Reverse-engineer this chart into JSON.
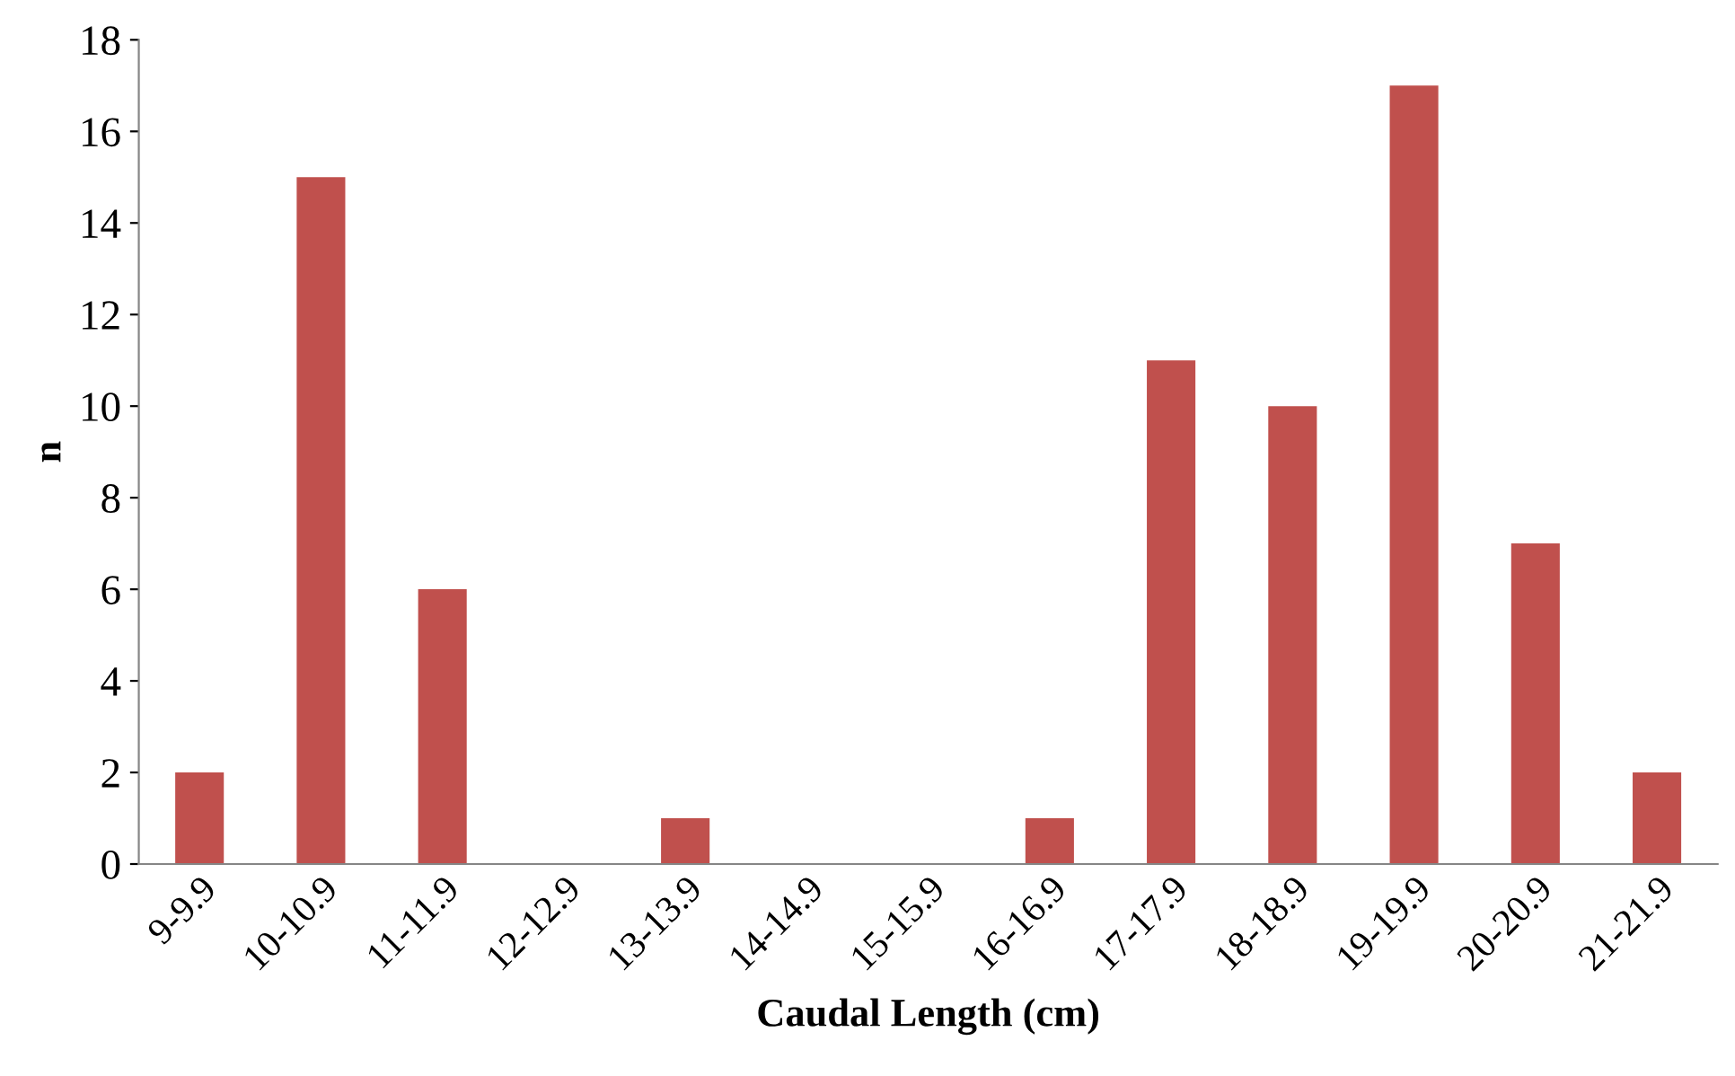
{
  "chart_data": {
    "type": "bar",
    "xlabel": "Caudal Length (cm)",
    "ylabel": "n",
    "categories": [
      "9-9.9",
      "10-10.9",
      "11-11.9",
      "12-12.9",
      "13-13.9",
      "14-14.9",
      "15-15.9",
      "16-16.9",
      "17-17.9",
      "18-18.9",
      "19-19.9",
      "20-20.9",
      "21-21.9"
    ],
    "values": [
      2,
      15,
      6,
      0,
      1,
      0,
      0,
      1,
      11,
      10,
      17,
      7,
      2
    ],
    "color": "#c0504d",
    "ylim": [
      0,
      18
    ],
    "yticks": [
      0,
      2,
      4,
      6,
      8,
      10,
      12,
      14,
      16,
      18
    ],
    "grid": false
  }
}
